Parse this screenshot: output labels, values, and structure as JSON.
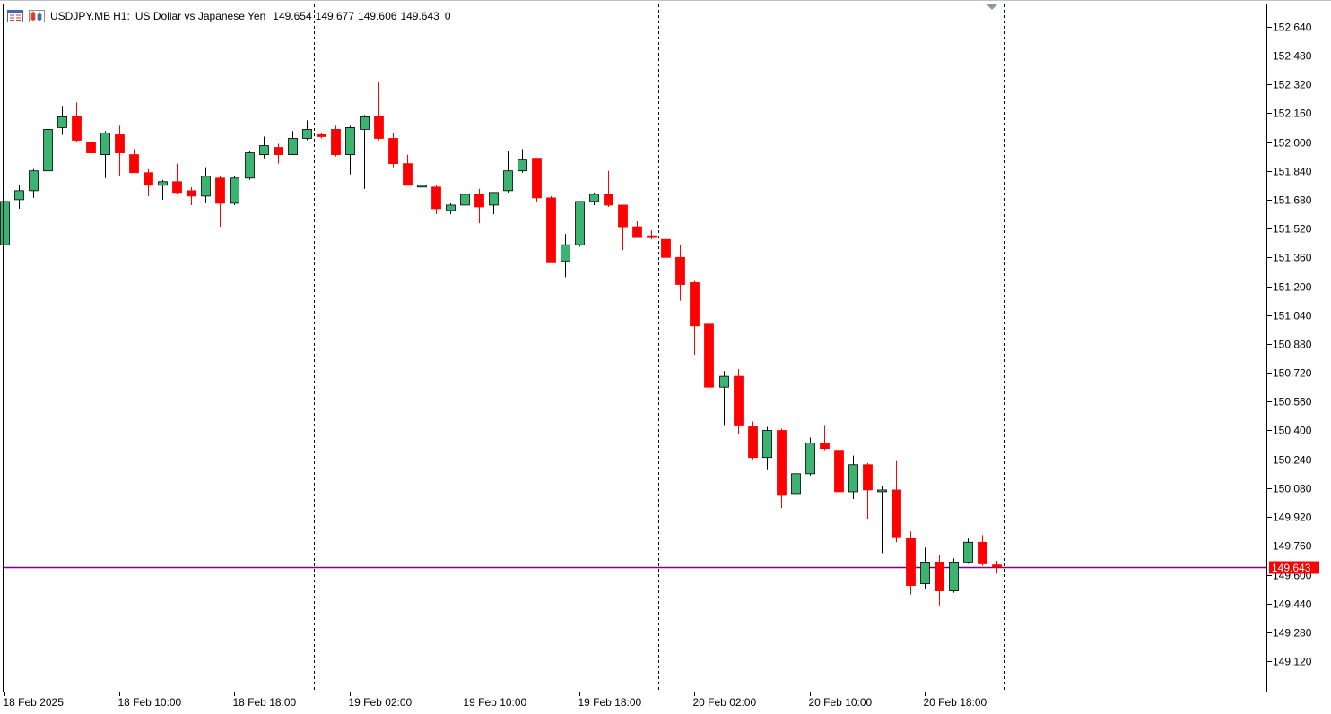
{
  "header": {
    "symbol": "USDJPY.MB",
    "timeframe": "H1:",
    "description": "US Dollar vs Japanese Yen",
    "open": "149.654",
    "high": "149.677",
    "low": "149.606",
    "close": "149.643",
    "volume": "0"
  },
  "icons": [
    "chart-window-icon",
    "indicators-icon",
    "scroll-marker-icon"
  ],
  "colors": {
    "bull": "#3cb371",
    "bear": "#ff0000",
    "outline": "#000000",
    "bid_line": "#800080",
    "price_tag": "#ff0000"
  },
  "chart_data": {
    "type": "candlestick",
    "current_price": 149.643,
    "current_price_label": "149.643",
    "y_ticks": [
      "152.640",
      "152.480",
      "152.320",
      "152.160",
      "152.000",
      "151.840",
      "151.680",
      "151.520",
      "151.360",
      "151.200",
      "151.040",
      "150.880",
      "150.720",
      "150.560",
      "150.400",
      "150.240",
      "150.080",
      "149.920",
      "149.760",
      "149.600",
      "149.440",
      "149.280",
      "149.120"
    ],
    "ylim": [
      149.0,
      152.75
    ],
    "x_labels": [
      "18 Feb 2025",
      "18 Feb 10:00",
      "18 Feb 18:00",
      "19 Feb 02:00",
      "19 Feb 10:00",
      "19 Feb 18:00",
      "20 Feb 02:00",
      "20 Feb 10:00",
      "20 Feb 18:00"
    ],
    "grid": false,
    "period_separators": true,
    "candles": [
      {
        "o": 151.43,
        "h": 151.67,
        "l": 151.43,
        "c": 151.67
      },
      {
        "o": 151.68,
        "h": 151.76,
        "l": 151.63,
        "c": 151.73
      },
      {
        "o": 151.73,
        "h": 151.85,
        "l": 151.69,
        "c": 151.84
      },
      {
        "o": 151.84,
        "h": 152.08,
        "l": 151.79,
        "c": 152.07
      },
      {
        "o": 152.08,
        "h": 152.2,
        "l": 152.04,
        "c": 152.14
      },
      {
        "o": 152.14,
        "h": 152.22,
        "l": 152.0,
        "c": 152.01
      },
      {
        "o": 152.0,
        "h": 152.07,
        "l": 151.89,
        "c": 151.94
      },
      {
        "o": 151.93,
        "h": 152.06,
        "l": 151.8,
        "c": 152.05
      },
      {
        "o": 152.04,
        "h": 152.09,
        "l": 151.81,
        "c": 151.94
      },
      {
        "o": 151.93,
        "h": 151.96,
        "l": 151.83,
        "c": 151.83
      },
      {
        "o": 151.83,
        "h": 151.85,
        "l": 151.7,
        "c": 151.76
      },
      {
        "o": 151.76,
        "h": 151.79,
        "l": 151.68,
        "c": 151.78
      },
      {
        "o": 151.78,
        "h": 151.88,
        "l": 151.71,
        "c": 151.72
      },
      {
        "o": 151.73,
        "h": 151.75,
        "l": 151.65,
        "c": 151.7
      },
      {
        "o": 151.7,
        "h": 151.86,
        "l": 151.66,
        "c": 151.81
      },
      {
        "o": 151.8,
        "h": 151.81,
        "l": 151.53,
        "c": 151.66
      },
      {
        "o": 151.66,
        "h": 151.81,
        "l": 151.65,
        "c": 151.8
      },
      {
        "o": 151.8,
        "h": 151.95,
        "l": 151.79,
        "c": 151.94
      },
      {
        "o": 151.93,
        "h": 152.03,
        "l": 151.91,
        "c": 151.98
      },
      {
        "o": 151.97,
        "h": 151.99,
        "l": 151.88,
        "c": 151.93
      },
      {
        "o": 151.93,
        "h": 152.06,
        "l": 151.93,
        "c": 152.02
      },
      {
        "o": 152.02,
        "h": 152.12,
        "l": 152.01,
        "c": 152.07
      },
      {
        "o": 152.04,
        "h": 152.05,
        "l": 152.02,
        "c": 152.03
      },
      {
        "o": 152.07,
        "h": 152.09,
        "l": 151.92,
        "c": 151.93
      },
      {
        "o": 151.93,
        "h": 152.09,
        "l": 151.82,
        "c": 152.08
      },
      {
        "o": 152.07,
        "h": 152.15,
        "l": 151.74,
        "c": 152.14
      },
      {
        "o": 152.14,
        "h": 152.33,
        "l": 152.01,
        "c": 152.02
      },
      {
        "o": 152.02,
        "h": 152.05,
        "l": 151.86,
        "c": 151.88
      },
      {
        "o": 151.88,
        "h": 151.93,
        "l": 151.76,
        "c": 151.76
      },
      {
        "o": 151.76,
        "h": 151.83,
        "l": 151.73,
        "c": 151.76
      },
      {
        "o": 151.75,
        "h": 151.76,
        "l": 151.6,
        "c": 151.63
      },
      {
        "o": 151.62,
        "h": 151.66,
        "l": 151.6,
        "c": 151.65
      },
      {
        "o": 151.65,
        "h": 151.86,
        "l": 151.64,
        "c": 151.71
      },
      {
        "o": 151.71,
        "h": 151.74,
        "l": 151.55,
        "c": 151.64
      },
      {
        "o": 151.65,
        "h": 151.71,
        "l": 151.6,
        "c": 151.72
      },
      {
        "o": 151.73,
        "h": 151.95,
        "l": 151.72,
        "c": 151.84
      },
      {
        "o": 151.84,
        "h": 151.96,
        "l": 151.83,
        "c": 151.9
      },
      {
        "o": 151.91,
        "h": 151.91,
        "l": 151.67,
        "c": 151.69
      },
      {
        "o": 151.69,
        "h": 151.7,
        "l": 151.33,
        "c": 151.33
      },
      {
        "o": 151.34,
        "h": 151.49,
        "l": 151.25,
        "c": 151.43
      },
      {
        "o": 151.43,
        "h": 151.67,
        "l": 151.42,
        "c": 151.67
      },
      {
        "o": 151.67,
        "h": 151.72,
        "l": 151.65,
        "c": 151.71
      },
      {
        "o": 151.71,
        "h": 151.84,
        "l": 151.64,
        "c": 151.65
      },
      {
        "o": 151.65,
        "h": 151.65,
        "l": 151.4,
        "c": 151.53
      },
      {
        "o": 151.53,
        "h": 151.56,
        "l": 151.47,
        "c": 151.47
      },
      {
        "o": 151.48,
        "h": 151.51,
        "l": 151.46,
        "c": 151.47
      },
      {
        "o": 151.46,
        "h": 151.47,
        "l": 151.36,
        "c": 151.36
      },
      {
        "o": 151.36,
        "h": 151.43,
        "l": 151.12,
        "c": 151.21
      },
      {
        "o": 151.22,
        "h": 151.23,
        "l": 150.82,
        "c": 150.98
      },
      {
        "o": 150.99,
        "h": 151.0,
        "l": 150.62,
        "c": 150.64
      },
      {
        "o": 150.64,
        "h": 150.73,
        "l": 150.43,
        "c": 150.7
      },
      {
        "o": 150.7,
        "h": 150.74,
        "l": 150.38,
        "c": 150.43
      },
      {
        "o": 150.42,
        "h": 150.45,
        "l": 150.24,
        "c": 150.25
      },
      {
        "o": 150.25,
        "h": 150.42,
        "l": 150.18,
        "c": 150.4
      },
      {
        "o": 150.4,
        "h": 150.41,
        "l": 149.97,
        "c": 150.04
      },
      {
        "o": 150.05,
        "h": 150.18,
        "l": 149.95,
        "c": 150.16
      },
      {
        "o": 150.16,
        "h": 150.36,
        "l": 150.15,
        "c": 150.33
      },
      {
        "o": 150.33,
        "h": 150.43,
        "l": 150.29,
        "c": 150.3
      },
      {
        "o": 150.29,
        "h": 150.33,
        "l": 150.05,
        "c": 150.06
      },
      {
        "o": 150.06,
        "h": 150.26,
        "l": 150.02,
        "c": 150.21
      },
      {
        "o": 150.21,
        "h": 150.22,
        "l": 149.91,
        "c": 150.07
      },
      {
        "o": 150.07,
        "h": 150.09,
        "l": 149.72,
        "c": 150.07
      },
      {
        "o": 150.07,
        "h": 150.23,
        "l": 149.78,
        "c": 149.81
      },
      {
        "o": 149.8,
        "h": 149.84,
        "l": 149.49,
        "c": 149.54
      },
      {
        "o": 149.55,
        "h": 149.75,
        "l": 149.52,
        "c": 149.67
      },
      {
        "o": 149.67,
        "h": 149.71,
        "l": 149.43,
        "c": 149.51
      },
      {
        "o": 149.51,
        "h": 149.69,
        "l": 149.5,
        "c": 149.67
      },
      {
        "o": 149.67,
        "h": 149.8,
        "l": 149.66,
        "c": 149.78
      },
      {
        "o": 149.78,
        "h": 149.82,
        "l": 149.65,
        "c": 149.66
      },
      {
        "o": 149.654,
        "h": 149.677,
        "l": 149.606,
        "c": 149.643
      }
    ]
  }
}
